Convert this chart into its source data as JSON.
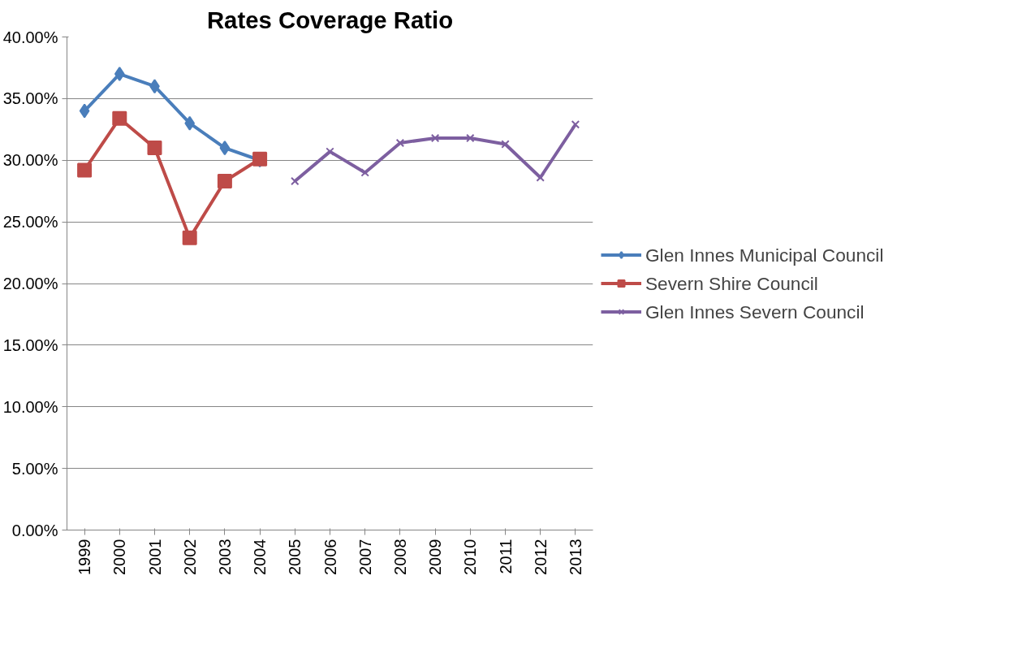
{
  "chart_data": {
    "type": "line",
    "title": "Rates Coverage Ratio",
    "categories": [
      "1999",
      "2000",
      "2001",
      "2002",
      "2003",
      "2004",
      "2005",
      "2006",
      "2007",
      "2008",
      "2009",
      "2010",
      "2011",
      "2012",
      "2013"
    ],
    "series": [
      {
        "name": "Glen Innes Municipal Council",
        "color": "#4a7ebb",
        "marker": "diamond",
        "values": [
          34.0,
          37.0,
          36.0,
          33.0,
          31.0,
          30.0,
          null,
          null,
          null,
          null,
          null,
          null,
          null,
          null,
          null
        ]
      },
      {
        "name": "Severn Shire Council",
        "color": "#be4b48",
        "marker": "square",
        "values": [
          29.2,
          33.4,
          31.0,
          23.7,
          28.3,
          30.1,
          null,
          null,
          null,
          null,
          null,
          null,
          null,
          null,
          null
        ]
      },
      {
        "name": "Glen Innes Severn Council",
        "color": "#7d5fa0",
        "marker": "cross",
        "values": [
          null,
          null,
          null,
          null,
          null,
          null,
          28.3,
          30.7,
          29.0,
          31.4,
          31.8,
          31.8,
          31.3,
          28.6,
          32.9
        ]
      }
    ],
    "ylim": [
      0,
      40
    ],
    "yticks": [
      {
        "value": 0,
        "label": "0.00%"
      },
      {
        "value": 5,
        "label": "5.00%"
      },
      {
        "value": 10,
        "label": "10.00%"
      },
      {
        "value": 15,
        "label": "15.00%"
      },
      {
        "value": 20,
        "label": "20.00%"
      },
      {
        "value": 25,
        "label": "25.00%"
      },
      {
        "value": 30,
        "label": "30.00%"
      },
      {
        "value": 35,
        "label": "35.00%"
      },
      {
        "value": 40,
        "label": "40.00%"
      }
    ],
    "grid": "y",
    "legend": "right",
    "line_style": "solid"
  }
}
